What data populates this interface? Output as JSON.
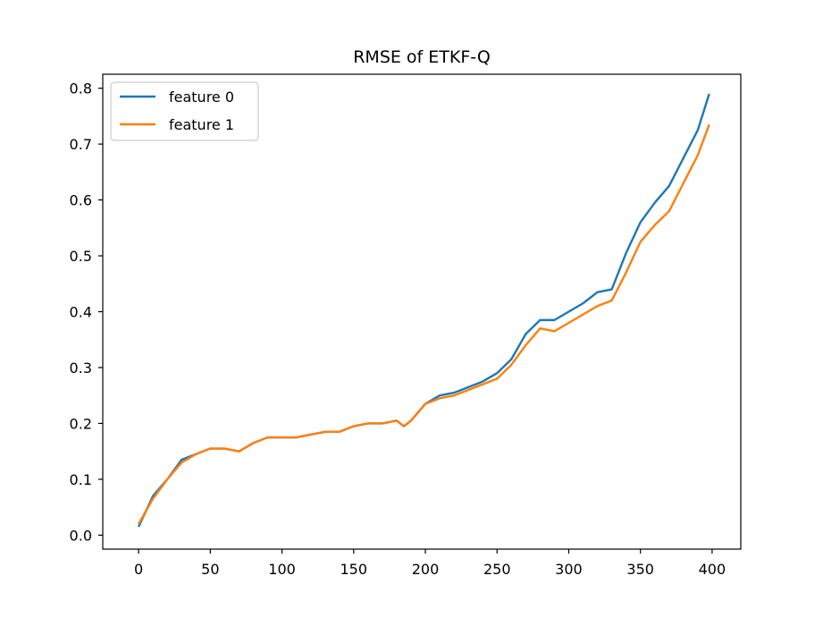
{
  "chart_data": {
    "type": "line",
    "title": "RMSE of ETKF-Q",
    "xlabel": "",
    "ylabel": "",
    "xlim": [
      -25,
      420
    ],
    "ylim": [
      -0.025,
      0.825
    ],
    "xticks": [
      0,
      50,
      100,
      150,
      200,
      250,
      300,
      350,
      400
    ],
    "yticks": [
      0.0,
      0.1,
      0.2,
      0.3,
      0.4,
      0.5,
      0.6,
      0.7,
      0.8
    ],
    "xtick_labels": [
      "0",
      "50",
      "100",
      "150",
      "200",
      "250",
      "300",
      "350",
      "400"
    ],
    "ytick_labels": [
      "0.0",
      "0.1",
      "0.2",
      "0.3",
      "0.4",
      "0.5",
      "0.6",
      "0.7",
      "0.8"
    ],
    "grid": false,
    "legend": "top-left",
    "x": [
      0,
      10,
      20,
      30,
      40,
      50,
      60,
      70,
      80,
      90,
      100,
      110,
      120,
      130,
      140,
      150,
      160,
      170,
      180,
      185,
      190,
      200,
      210,
      220,
      230,
      240,
      250,
      260,
      270,
      280,
      290,
      300,
      310,
      320,
      330,
      340,
      350,
      360,
      370,
      380,
      390,
      398
    ],
    "series": [
      {
        "name": "feature 0",
        "color": "#1f77b4",
        "values": [
          0.015,
          0.07,
          0.1,
          0.135,
          0.145,
          0.155,
          0.155,
          0.15,
          0.165,
          0.175,
          0.175,
          0.175,
          0.18,
          0.185,
          0.185,
          0.195,
          0.2,
          0.2,
          0.205,
          0.195,
          0.205,
          0.235,
          0.25,
          0.255,
          0.265,
          0.275,
          0.29,
          0.315,
          0.36,
          0.385,
          0.385,
          0.4,
          0.415,
          0.435,
          0.44,
          0.505,
          0.56,
          0.595,
          0.625,
          0.675,
          0.725,
          0.79
        ]
      },
      {
        "name": "feature 1",
        "color": "#ff7f0e",
        "values": [
          0.02,
          0.065,
          0.1,
          0.13,
          0.145,
          0.155,
          0.155,
          0.15,
          0.165,
          0.175,
          0.175,
          0.175,
          0.18,
          0.185,
          0.185,
          0.195,
          0.2,
          0.2,
          0.205,
          0.195,
          0.205,
          0.235,
          0.245,
          0.25,
          0.26,
          0.27,
          0.28,
          0.305,
          0.34,
          0.37,
          0.365,
          0.38,
          0.395,
          0.41,
          0.42,
          0.47,
          0.525,
          0.555,
          0.58,
          0.63,
          0.68,
          0.735
        ]
      }
    ]
  }
}
